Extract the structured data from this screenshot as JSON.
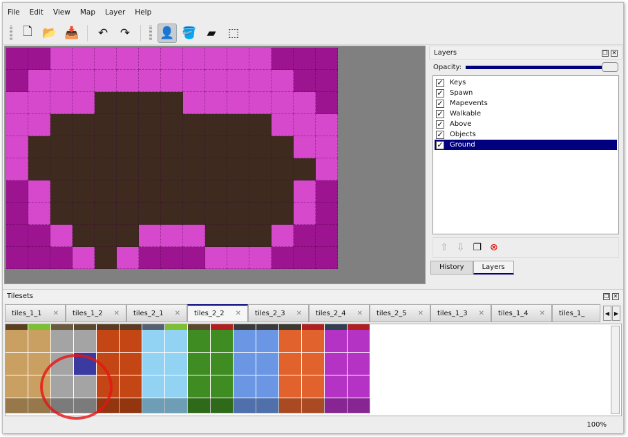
{
  "menu": [
    "File",
    "Edit",
    "View",
    "Map",
    "Layer",
    "Help"
  ],
  "toolbar": [
    {
      "name": "new-icon",
      "glyph": "🗋"
    },
    {
      "name": "open-icon",
      "glyph": "📂"
    },
    {
      "name": "save-icon",
      "glyph": "📥"
    },
    {
      "sep": true
    },
    {
      "name": "undo-icon",
      "glyph": "↶"
    },
    {
      "name": "redo-icon",
      "glyph": "↷"
    },
    {
      "sep": true
    },
    {
      "name": "stamp-brush-icon",
      "glyph": "👤",
      "active": true
    },
    {
      "name": "bucket-fill-icon",
      "glyph": "🪣"
    },
    {
      "name": "eraser-icon",
      "glyph": "▰"
    },
    {
      "name": "rect-select-icon",
      "glyph": "⬚"
    }
  ],
  "colors": {
    "accent": "#00007f",
    "D": "#9c1490",
    "L": "#d648cc",
    "B": "#3e2a1e"
  },
  "map_rows": [
    "DDLLLLLLLLLLDDD",
    "DLLLLLLLLLLLLDD",
    "LLLLBBBBLLLLLLD",
    "LLBBBBBBBBBBLLL",
    "LBBBBBBBBBBBBLL",
    "LBBBBBBBBBBBBBL",
    "DLBBBBBBBBBBBLD",
    "DLBBBBBBBBBBBLD",
    "DDLBBBLLLBBBLDD",
    "DDDLBLDDDLLLDDD"
  ],
  "layers_panel": {
    "title": "Layers",
    "opacity_label": "Opacity:",
    "opacity": 1.0,
    "layers": [
      {
        "name": "Keys",
        "visible": true
      },
      {
        "name": "Spawn",
        "visible": true
      },
      {
        "name": "Mapevents",
        "visible": true
      },
      {
        "name": "Walkable",
        "visible": true
      },
      {
        "name": "Above",
        "visible": true
      },
      {
        "name": "Objects",
        "visible": true
      },
      {
        "name": "Ground",
        "visible": true,
        "selected": true
      }
    ],
    "bottom_tabs": [
      "History",
      "Layers"
    ],
    "active_bottom_tab": "Layers"
  },
  "tilesets": {
    "title": "Tilesets",
    "tabs": [
      "tiles_1_1",
      "tiles_1_2",
      "tiles_2_1",
      "tiles_2_2",
      "tiles_2_3",
      "tiles_2_4",
      "tiles_2_5",
      "tiles_1_3",
      "tiles_1_4",
      "tiles_1_"
    ],
    "active_tab": "tiles_2_2",
    "column_colors": [
      "#c9a062",
      "#c9a062",
      "#a4a4a4",
      "#a4a4a4",
      "#c44614",
      "#c44614",
      "#92d2f2",
      "#92d2f2",
      "#3e8c22",
      "#3e8c22",
      "#6a96e4",
      "#6a96e4",
      "#e2622e",
      "#e2622e",
      "#b432c4",
      "#b432c4"
    ],
    "strip_colors": [
      "#5a4020",
      "#7cc030",
      "#6a5a40",
      "#5a4a30",
      "#5a3a20",
      "#5a3a20",
      "#556070",
      "#7cc030",
      "#5a4a30",
      "#b02020",
      "#3a3a3a",
      "#3a3a3a",
      "#3a3a30",
      "#b02020",
      "#304050",
      "#b02020"
    ],
    "selected_tile": {
      "col": 3,
      "row": 1,
      "color": "#3a3aa0"
    }
  },
  "status": {
    "zoom": "100%"
  }
}
